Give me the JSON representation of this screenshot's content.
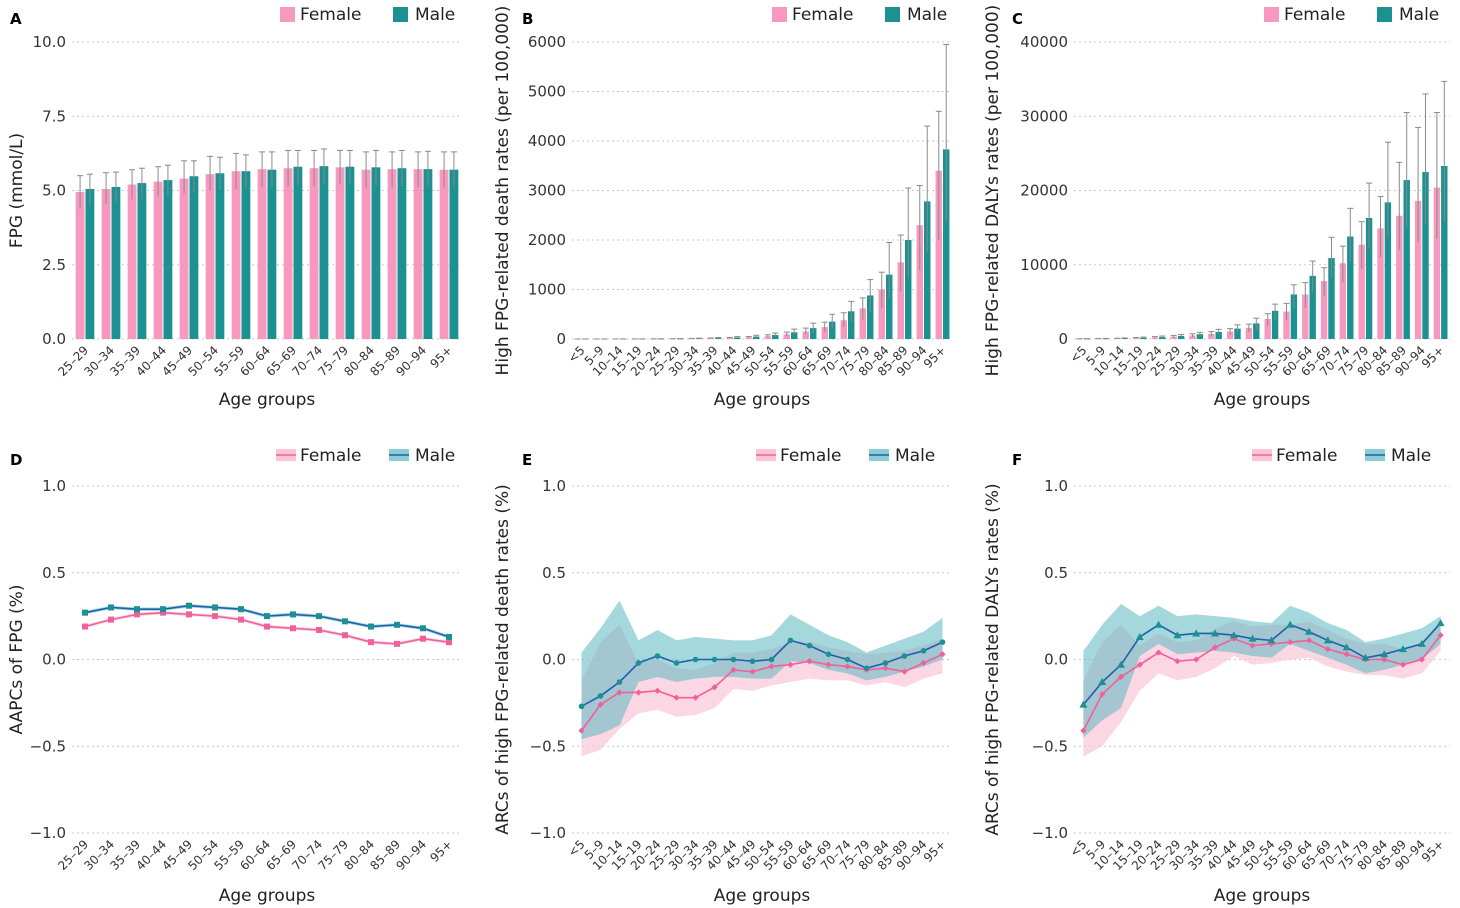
{
  "colors": {
    "female_bar": "#f799bf",
    "male_bar": "#1b9191",
    "female_line": "#f0609b",
    "male_line": "#1f5fb0",
    "female_band": "#f9c6d8",
    "male_band": "#5bb8c0",
    "errorbar": "#8a8a8a"
  },
  "legend": {
    "female": "Female",
    "male": "Male"
  },
  "chart_data": [
    {
      "panel": "A",
      "type": "bar",
      "xlabel": "Age groups",
      "ylabel": "FPG (mmol/L)",
      "ylim": [
        0,
        10
      ],
      "yticks": [
        "0.0",
        "2.5",
        "5.0",
        "7.5",
        "10.0"
      ],
      "ytick_values": [
        0,
        2.5,
        5,
        7.5,
        10
      ],
      "categories": [
        "25–29",
        "30–34",
        "35–39",
        "40–44",
        "45–49",
        "50–54",
        "55–59",
        "60–64",
        "65–69",
        "70–74",
        "75–79",
        "80–84",
        "85–89",
        "90–94",
        "95+"
      ],
      "series": [
        {
          "name": "Female",
          "values": [
            4.95,
            5.05,
            5.2,
            5.3,
            5.4,
            5.55,
            5.65,
            5.72,
            5.75,
            5.75,
            5.78,
            5.7,
            5.72,
            5.72,
            5.7
          ],
          "upper": [
            5.5,
            5.6,
            5.7,
            5.8,
            6.0,
            6.15,
            6.25,
            6.3,
            6.35,
            6.35,
            6.35,
            6.3,
            6.3,
            6.3,
            6.3
          ],
          "lower": [
            4.4,
            4.55,
            4.7,
            4.8,
            4.9,
            5.0,
            5.05,
            5.1,
            5.15,
            5.15,
            5.2,
            5.1,
            5.1,
            5.1,
            5.1
          ]
        },
        {
          "name": "Male",
          "values": [
            5.05,
            5.12,
            5.25,
            5.35,
            5.48,
            5.58,
            5.65,
            5.7,
            5.8,
            5.82,
            5.8,
            5.78,
            5.75,
            5.72,
            5.7
          ],
          "upper": [
            5.55,
            5.62,
            5.75,
            5.85,
            6.0,
            6.12,
            6.2,
            6.3,
            6.35,
            6.4,
            6.35,
            6.35,
            6.35,
            6.32,
            6.3
          ],
          "lower": [
            4.5,
            4.6,
            4.72,
            4.82,
            4.95,
            5.02,
            5.1,
            5.12,
            5.2,
            5.22,
            5.2,
            5.18,
            5.15,
            5.12,
            5.1
          ]
        }
      ]
    },
    {
      "panel": "B",
      "type": "bar",
      "xlabel": "Age groups",
      "ylabel": "High FPG-related death rates (per 100,000)",
      "ylim": [
        0,
        6000
      ],
      "yticks": [
        "0",
        "1000",
        "2000",
        "3000",
        "4000",
        "5000",
        "6000"
      ],
      "ytick_values": [
        0,
        1000,
        2000,
        3000,
        4000,
        5000,
        6000
      ],
      "categories": [
        "<5",
        "5–9",
        "10–14",
        "15–19",
        "20–24",
        "25–29",
        "30–34",
        "35–39",
        "40–44",
        "45–49",
        "50–54",
        "55–59",
        "60–64",
        "65–69",
        "70–74",
        "75–79",
        "80–84",
        "85–89",
        "90–94",
        "95+"
      ],
      "series": [
        {
          "name": "Female",
          "values": [
            0.5,
            0.3,
            0.5,
            1,
            2,
            4,
            7,
            12,
            20,
            32,
            55,
            95,
            150,
            240,
            380,
            620,
            1000,
            1550,
            2300,
            3400
          ],
          "upper": [
            1,
            0.6,
            1,
            2,
            4,
            7,
            12,
            20,
            32,
            50,
            85,
            140,
            220,
            340,
            530,
            830,
            1350,
            2100,
            3100,
            4600
          ],
          "lower": [
            0.2,
            0.1,
            0.2,
            0.5,
            1,
            2,
            4,
            7,
            12,
            20,
            35,
            60,
            95,
            150,
            240,
            390,
            630,
            960,
            1400,
            2000
          ]
        },
        {
          "name": "Male",
          "values": [
            0.5,
            0.3,
            0.6,
            1.2,
            2.5,
            5,
            10,
            18,
            30,
            48,
            80,
            135,
            220,
            350,
            560,
            880,
            1300,
            2000,
            2780,
            3830
          ],
          "upper": [
            1,
            0.6,
            1.2,
            2.4,
            5,
            9,
            17,
            30,
            48,
            75,
            120,
            200,
            320,
            500,
            760,
            1200,
            1950,
            3050,
            4300,
            5950
          ],
          "lower": [
            0.2,
            0.1,
            0.3,
            0.6,
            1.2,
            2.5,
            5,
            10,
            17,
            28,
            48,
            80,
            130,
            210,
            340,
            540,
            820,
            1250,
            1750,
            2400
          ]
        }
      ]
    },
    {
      "panel": "C",
      "type": "bar",
      "xlabel": "Age groups",
      "ylabel": "High FPG-related DALYs rates (per 100,000)",
      "ylim": [
        0,
        40000
      ],
      "yticks": [
        "0",
        "10000",
        "20000",
        "30000",
        "40000"
      ],
      "ytick_values": [
        0,
        10000,
        20000,
        30000,
        40000
      ],
      "categories": [
        "<5",
        "5–9",
        "10–14",
        "15–19",
        "20–24",
        "25–29",
        "30–34",
        "35–39",
        "40–44",
        "45–49",
        "50–54",
        "55–59",
        "60–64",
        "65–69",
        "70–74",
        "75–79",
        "80–84",
        "85–89",
        "90–94",
        "95+"
      ],
      "series": [
        {
          "name": "Female",
          "values": [
            20,
            30,
            60,
            120,
            200,
            320,
            480,
            700,
            1000,
            1500,
            2700,
            3700,
            6000,
            7800,
            10200,
            12700,
            14900,
            16600,
            18600,
            20400
          ],
          "upper": [
            40,
            60,
            100,
            200,
            320,
            480,
            700,
            1000,
            1400,
            2000,
            3400,
            4800,
            7600,
            9600,
            12500,
            15800,
            19200,
            23800,
            28500,
            30500
          ],
          "lower": [
            10,
            15,
            30,
            60,
            100,
            170,
            270,
            400,
            600,
            950,
            1800,
            2500,
            4200,
            5800,
            7600,
            9500,
            11000,
            12000,
            13000,
            13500
          ]
        },
        {
          "name": "Male",
          "values": [
            25,
            40,
            80,
            160,
            260,
            420,
            650,
            950,
            1400,
            2100,
            3800,
            6000,
            8500,
            10900,
            13800,
            16300,
            18400,
            21400,
            22500,
            23300
          ],
          "upper": [
            50,
            80,
            140,
            260,
            400,
            620,
            900,
            1300,
            1900,
            2800,
            4700,
            7300,
            10500,
            13700,
            17600,
            21000,
            26500,
            30500,
            33000,
            34700
          ],
          "lower": [
            12,
            20,
            40,
            80,
            130,
            220,
            350,
            530,
            800,
            1250,
            2600,
            4200,
            6300,
            8200,
            10400,
            12200,
            13700,
            15000,
            15500,
            15800
          ]
        }
      ]
    },
    {
      "panel": "D",
      "type": "line",
      "xlabel": "Age groups",
      "ylabel": "AAPCs of FPG (%)",
      "ylim": [
        -1.0,
        1.0
      ],
      "yticks": [
        "−1.0",
        "−0.5",
        "0.0",
        "0.5",
        "1.0"
      ],
      "ytick_values": [
        -1,
        -0.5,
        0,
        0.5,
        1
      ],
      "categories": [
        "25–29",
        "30–34",
        "35–39",
        "40–44",
        "45–49",
        "50–54",
        "55–59",
        "60–64",
        "65–69",
        "70–74",
        "75–79",
        "80–84",
        "85–89",
        "90–94",
        "95+"
      ],
      "series": [
        {
          "name": "Female",
          "values": [
            0.19,
            0.23,
            0.26,
            0.27,
            0.26,
            0.25,
            0.23,
            0.19,
            0.18,
            0.17,
            0.14,
            0.1,
            0.09,
            0.12,
            0.1
          ],
          "upper": [
            0.2,
            0.24,
            0.27,
            0.28,
            0.27,
            0.26,
            0.24,
            0.2,
            0.19,
            0.18,
            0.15,
            0.11,
            0.1,
            0.13,
            0.11
          ],
          "lower": [
            0.18,
            0.22,
            0.25,
            0.26,
            0.25,
            0.24,
            0.22,
            0.18,
            0.17,
            0.16,
            0.13,
            0.09,
            0.08,
            0.11,
            0.09
          ]
        },
        {
          "name": "Male",
          "values": [
            0.27,
            0.3,
            0.29,
            0.29,
            0.31,
            0.3,
            0.29,
            0.25,
            0.26,
            0.25,
            0.22,
            0.19,
            0.2,
            0.18,
            0.13
          ],
          "upper": [
            0.28,
            0.31,
            0.3,
            0.3,
            0.32,
            0.31,
            0.3,
            0.26,
            0.27,
            0.26,
            0.23,
            0.2,
            0.21,
            0.19,
            0.14
          ],
          "lower": [
            0.26,
            0.29,
            0.28,
            0.28,
            0.3,
            0.29,
            0.28,
            0.24,
            0.25,
            0.24,
            0.21,
            0.18,
            0.19,
            0.17,
            0.12
          ]
        }
      ]
    },
    {
      "panel": "E",
      "type": "line",
      "xlabel": "Age groups",
      "ylabel": "ARCs of high FPG-related death rates (%)",
      "ylim": [
        -1.0,
        1.0
      ],
      "yticks": [
        "−1.0",
        "−0.5",
        "0.0",
        "0.5",
        "1.0"
      ],
      "ytick_values": [
        -1,
        -0.5,
        0,
        0.5,
        1
      ],
      "categories": [
        "<5",
        "5–9",
        "10–14",
        "15–19",
        "20–24",
        "25–29",
        "30–34",
        "35–39",
        "40–44",
        "45–49",
        "50–54",
        "55–59",
        "60–64",
        "65–69",
        "70–74",
        "75–79",
        "80–84",
        "85–89",
        "90–94",
        "95+"
      ],
      "series": [
        {
          "name": "Female",
          "values": [
            -0.41,
            -0.26,
            -0.19,
            -0.19,
            -0.18,
            -0.22,
            -0.22,
            -0.16,
            -0.06,
            -0.07,
            -0.04,
            -0.03,
            -0.01,
            -0.03,
            -0.04,
            -0.06,
            -0.05,
            -0.07,
            -0.02,
            0.03
          ],
          "upper": [
            -0.12,
            0.1,
            0.2,
            -0.02,
            0.0,
            -0.05,
            -0.06,
            -0.02,
            0.04,
            0.04,
            0.06,
            0.1,
            0.1,
            0.07,
            0.05,
            0.03,
            0.04,
            0.05,
            0.08,
            0.12
          ],
          "lower": [
            -0.56,
            -0.52,
            -0.4,
            -0.31,
            -0.29,
            -0.33,
            -0.32,
            -0.28,
            -0.17,
            -0.18,
            -0.15,
            -0.13,
            -0.11,
            -0.12,
            -0.12,
            -0.15,
            -0.13,
            -0.16,
            -0.11,
            -0.08
          ]
        },
        {
          "name": "Male",
          "values": [
            -0.27,
            -0.21,
            -0.13,
            -0.02,
            0.02,
            -0.02,
            0.0,
            0.0,
            0.0,
            -0.01,
            0.0,
            0.11,
            0.08,
            0.03,
            0.0,
            -0.05,
            -0.02,
            0.02,
            0.05,
            0.1
          ],
          "upper": [
            0.04,
            0.18,
            0.34,
            0.11,
            0.17,
            0.11,
            0.13,
            0.12,
            0.11,
            0.11,
            0.14,
            0.26,
            0.2,
            0.14,
            0.1,
            0.04,
            0.08,
            0.12,
            0.16,
            0.24
          ],
          "lower": [
            -0.46,
            -0.43,
            -0.38,
            -0.13,
            -0.1,
            -0.13,
            -0.11,
            -0.1,
            -0.1,
            -0.11,
            -0.11,
            -0.01,
            -0.02,
            -0.06,
            -0.08,
            -0.12,
            -0.1,
            -0.07,
            -0.04,
            0.0
          ]
        }
      ]
    },
    {
      "panel": "F",
      "type": "line",
      "xlabel": "Age groups",
      "ylabel": "ARCs of high FPG-related DALYs rates (%)",
      "ylim": [
        -1.0,
        1.0
      ],
      "yticks": [
        "−1.0",
        "−0.5",
        "0.0",
        "0.5",
        "1.0"
      ],
      "ytick_values": [
        -1,
        -0.5,
        0,
        0.5,
        1
      ],
      "categories": [
        "<5",
        "5–9",
        "10–14",
        "15–19",
        "20–24",
        "25–29",
        "30–34",
        "35–39",
        "40–44",
        "45–49",
        "50–54",
        "55–59",
        "60–64",
        "65–69",
        "70–74",
        "75–79",
        "80–84",
        "85–89",
        "90–94",
        "95+"
      ],
      "series": [
        {
          "name": "Female",
          "values": [
            -0.41,
            -0.2,
            -0.1,
            -0.03,
            0.04,
            -0.01,
            0.0,
            0.07,
            0.12,
            0.08,
            0.09,
            0.1,
            0.11,
            0.06,
            0.03,
            0.0,
            0.0,
            -0.03,
            0.0,
            0.14
          ],
          "upper": [
            -0.12,
            0.1,
            0.2,
            0.08,
            0.15,
            0.1,
            0.11,
            0.18,
            0.22,
            0.19,
            0.2,
            0.2,
            0.22,
            0.17,
            0.12,
            0.09,
            0.09,
            0.06,
            0.1,
            0.22
          ],
          "lower": [
            -0.56,
            -0.5,
            -0.36,
            -0.18,
            -0.08,
            -0.12,
            -0.1,
            -0.05,
            0.02,
            -0.03,
            -0.02,
            0.0,
            0.01,
            -0.04,
            -0.07,
            -0.09,
            -0.09,
            -0.11,
            -0.08,
            0.05
          ]
        },
        {
          "name": "Male",
          "values": [
            -0.26,
            -0.13,
            -0.03,
            0.13,
            0.2,
            0.14,
            0.15,
            0.15,
            0.14,
            0.12,
            0.11,
            0.2,
            0.16,
            0.11,
            0.07,
            0.01,
            0.03,
            0.06,
            0.09,
            0.21
          ],
          "upper": [
            0.05,
            0.2,
            0.32,
            0.25,
            0.31,
            0.25,
            0.26,
            0.25,
            0.24,
            0.22,
            0.21,
            0.31,
            0.27,
            0.21,
            0.17,
            0.1,
            0.12,
            0.15,
            0.18,
            0.25
          ],
          "lower": [
            -0.45,
            -0.35,
            -0.28,
            0.02,
            0.09,
            0.03,
            0.04,
            0.05,
            0.04,
            0.02,
            0.01,
            0.09,
            0.05,
            0.01,
            -0.03,
            -0.08,
            -0.06,
            -0.03,
            0.0,
            0.09
          ]
        }
      ]
    }
  ]
}
